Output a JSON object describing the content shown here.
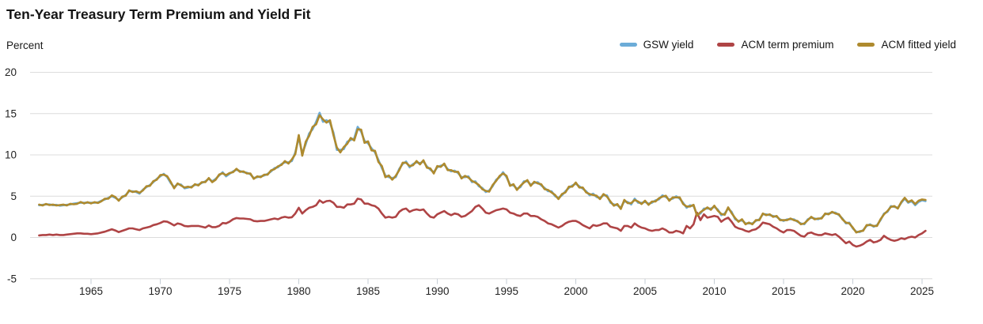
{
  "header": {
    "title": "Ten-Year Treasury Term Premium and Yield Fit"
  },
  "colors": {
    "grid": "#dcdcdc",
    "tick": "#c6ced6",
    "axis_text": "#222222",
    "blue": "#6cacd8",
    "red": "#af4445",
    "gold": "#ae8a2e"
  },
  "chart_data": {
    "type": "line",
    "title": "Ten-Year Treasury Term Premium and Yield Fit",
    "ylabel": "Percent",
    "xlabel": "",
    "ylim": [
      -5,
      20
    ],
    "xlim": [
      1960.6,
      2025.7
    ],
    "grid": "horizontal",
    "legend_position": "top-right",
    "y_ticks": [
      20,
      15,
      10,
      5,
      0,
      -5
    ],
    "x_ticks": [
      1965,
      1970,
      1975,
      1980,
      1985,
      1990,
      1995,
      2000,
      2005,
      2010,
      2015,
      2020,
      2025
    ],
    "x_start": 1961.25,
    "x_step": 0.25,
    "series": [
      {
        "name": "GSW yield",
        "color": "#6cacd8",
        "values": [
          3.9,
          3.95,
          4.0,
          4.0,
          3.9,
          3.95,
          3.85,
          3.9,
          3.95,
          4.0,
          4.1,
          4.15,
          4.2,
          4.2,
          4.2,
          4.2,
          4.2,
          4.25,
          4.45,
          4.6,
          4.8,
          5.0,
          4.8,
          4.55,
          4.85,
          5.15,
          5.6,
          5.6,
          5.5,
          5.3,
          5.8,
          6.1,
          6.35,
          6.7,
          7.1,
          7.4,
          7.7,
          7.3,
          6.6,
          6.1,
          6.45,
          6.4,
          5.95,
          6.05,
          6.15,
          6.35,
          6.4,
          6.6,
          6.8,
          7.1,
          6.8,
          7.1,
          7.5,
          7.9,
          7.4,
          7.7,
          8.0,
          8.2,
          8.05,
          7.9,
          7.85,
          7.65,
          7.2,
          7.3,
          7.4,
          7.5,
          7.7,
          8.0,
          8.4,
          8.5,
          8.9,
          9.1,
          9.1,
          9.25,
          10.3,
          12.1,
          10.2,
          11.3,
          12.6,
          13.1,
          14.0,
          15.1,
          14.0,
          14.2,
          13.9,
          12.7,
          10.6,
          10.6,
          10.7,
          11.6,
          11.8,
          12.0,
          13.4,
          12.8,
          11.7,
          11.4,
          10.8,
          10.3,
          9.4,
          8.4,
          7.5,
          7.3,
          7.2,
          7.3,
          8.3,
          8.9,
          9.2,
          8.5,
          8.9,
          9.1,
          9.0,
          9.2,
          8.6,
          8.2,
          7.9,
          8.5,
          8.7,
          8.8,
          8.3,
          8.0,
          8.1,
          7.8,
          7.3,
          7.3,
          7.4,
          6.7,
          6.8,
          6.2,
          6.0,
          5.5,
          5.7,
          6.2,
          7.0,
          7.3,
          7.9,
          7.3,
          6.4,
          6.3,
          5.9,
          6.1,
          6.8,
          6.8,
          6.4,
          6.6,
          6.7,
          6.3,
          6.0,
          5.6,
          5.6,
          5.0,
          4.8,
          5.1,
          5.6,
          6.0,
          6.3,
          6.5,
          6.2,
          5.9,
          5.6,
          5.1,
          5.3,
          4.9,
          4.8,
          5.1,
          5.1,
          4.2,
          4.0,
          3.9,
          3.6,
          4.4,
          4.3,
          4.0,
          4.7,
          4.2,
          4.2,
          4.3,
          4.1,
          4.2,
          4.5,
          4.6,
          5.1,
          4.9,
          4.6,
          4.7,
          5.0,
          4.7,
          4.2,
          3.6,
          3.9,
          3.8,
          2.8,
          2.9,
          3.5,
          3.5,
          3.5,
          3.7,
          3.4,
          2.7,
          2.9,
          3.5,
          3.1,
          2.2,
          2.0,
          2.1,
          1.7,
          1.7,
          1.7,
          2.0,
          2.2,
          2.8,
          2.8,
          2.7,
          2.6,
          2.5,
          2.2,
          2.0,
          2.2,
          2.2,
          2.2,
          1.9,
          1.7,
          1.6,
          2.2,
          2.4,
          2.3,
          2.2,
          2.4,
          2.8,
          2.9,
          3.0,
          3.0,
          2.7,
          2.3,
          1.7,
          1.8,
          1.1,
          0.7,
          0.65,
          0.9,
          1.4,
          1.6,
          1.3,
          1.5,
          2.1,
          2.9,
          3.1,
          3.8,
          3.7,
          3.6,
          4.2,
          4.7,
          4.2,
          4.4,
          3.9,
          4.3,
          4.5,
          4.4
        ]
      },
      {
        "name": "ACM term premium",
        "color": "#af4445",
        "values": [
          0.25,
          0.3,
          0.3,
          0.35,
          0.3,
          0.35,
          0.3,
          0.3,
          0.35,
          0.4,
          0.45,
          0.5,
          0.5,
          0.45,
          0.45,
          0.4,
          0.45,
          0.5,
          0.6,
          0.7,
          0.85,
          1.0,
          0.85,
          0.65,
          0.8,
          0.95,
          1.1,
          1.1,
          1.0,
          0.9,
          1.1,
          1.2,
          1.3,
          1.5,
          1.6,
          1.75,
          1.95,
          1.9,
          1.7,
          1.45,
          1.7,
          1.6,
          1.4,
          1.35,
          1.4,
          1.4,
          1.4,
          1.3,
          1.2,
          1.45,
          1.25,
          1.25,
          1.4,
          1.75,
          1.7,
          1.9,
          2.2,
          2.35,
          2.3,
          2.3,
          2.25,
          2.2,
          2.0,
          1.95,
          2.0,
          2.0,
          2.1,
          2.2,
          2.3,
          2.2,
          2.4,
          2.5,
          2.4,
          2.45,
          2.9,
          3.6,
          2.9,
          3.3,
          3.6,
          3.7,
          3.9,
          4.5,
          4.2,
          4.4,
          4.45,
          4.2,
          3.7,
          3.7,
          3.6,
          4.0,
          4.0,
          4.1,
          4.7,
          4.6,
          4.1,
          4.1,
          3.9,
          3.8,
          3.5,
          2.9,
          2.4,
          2.5,
          2.4,
          2.5,
          3.1,
          3.4,
          3.5,
          3.1,
          3.3,
          3.4,
          3.3,
          3.4,
          2.9,
          2.5,
          2.4,
          2.8,
          3.0,
          3.2,
          2.9,
          2.7,
          2.9,
          2.8,
          2.5,
          2.6,
          2.9,
          3.2,
          3.7,
          3.9,
          3.5,
          3.0,
          2.9,
          3.1,
          3.3,
          3.4,
          3.5,
          3.4,
          3.0,
          2.9,
          2.7,
          2.6,
          2.9,
          2.9,
          2.6,
          2.6,
          2.5,
          2.2,
          2.0,
          1.7,
          1.6,
          1.4,
          1.2,
          1.4,
          1.7,
          1.9,
          2.0,
          2.0,
          1.8,
          1.5,
          1.3,
          1.1,
          1.5,
          1.4,
          1.5,
          1.7,
          1.7,
          1.3,
          1.2,
          1.1,
          0.8,
          1.4,
          1.4,
          1.2,
          1.7,
          1.4,
          1.2,
          1.1,
          0.9,
          0.8,
          0.9,
          0.9,
          1.1,
          0.9,
          0.6,
          0.6,
          0.8,
          0.7,
          0.5,
          1.4,
          1.1,
          1.6,
          3.0,
          2.1,
          2.8,
          2.4,
          2.5,
          2.6,
          2.5,
          1.9,
          2.2,
          2.4,
          1.9,
          1.3,
          1.1,
          1.0,
          0.8,
          0.7,
          0.9,
          1.0,
          1.3,
          1.8,
          1.7,
          1.6,
          1.3,
          1.1,
          0.8,
          0.6,
          0.9,
          0.9,
          0.8,
          0.5,
          0.2,
          0.1,
          0.5,
          0.6,
          0.4,
          0.3,
          0.3,
          0.5,
          0.4,
          0.3,
          0.4,
          0.1,
          -0.3,
          -0.7,
          -0.5,
          -0.9,
          -1.1,
          -1.0,
          -0.8,
          -0.5,
          -0.3,
          -0.6,
          -0.5,
          -0.3,
          0.2,
          -0.1,
          -0.3,
          -0.4,
          -0.3,
          -0.1,
          -0.2,
          0.0,
          0.1,
          0.0,
          0.3,
          0.5,
          0.8
        ]
      },
      {
        "name": "ACM fitted yield",
        "color": "#ae8a2e",
        "values": [
          3.98,
          3.88,
          4.06,
          3.92,
          3.98,
          3.88,
          3.92,
          3.98,
          3.88,
          4.08,
          4.02,
          4.08,
          4.3,
          4.12,
          4.28,
          4.12,
          4.28,
          4.18,
          4.38,
          4.7,
          4.7,
          5.1,
          4.9,
          4.45,
          4.95,
          5.05,
          5.7,
          5.5,
          5.6,
          5.42,
          5.7,
          6.2,
          6.25,
          6.82,
          7.0,
          7.55,
          7.6,
          7.42,
          6.75,
          5.95,
          6.55,
          6.3,
          6.05,
          6.15,
          6.05,
          6.45,
          6.3,
          6.7,
          6.7,
          7.2,
          6.7,
          7.0,
          7.62,
          7.78,
          7.55,
          7.8,
          7.9,
          8.32,
          7.95,
          8.0,
          7.75,
          7.75,
          7.1,
          7.4,
          7.3,
          7.6,
          7.6,
          8.12,
          8.28,
          8.62,
          8.78,
          9.25,
          8.95,
          9.45,
          10.1,
          12.4,
          9.9,
          11.6,
          12.3,
          13.4,
          13.7,
          14.8,
          14.3,
          13.9,
          14.2,
          12.4,
          10.9,
          10.3,
          10.95,
          11.35,
          12.05,
          11.75,
          13.1,
          13.05,
          11.45,
          11.65,
          10.55,
          10.5,
          9.15,
          8.65,
          7.3,
          7.5,
          7.0,
          7.45,
          8.15,
          9.05,
          9.05,
          8.65,
          8.75,
          9.25,
          8.85,
          9.35,
          8.45,
          8.35,
          7.75,
          8.65,
          8.55,
          8.95,
          8.15,
          8.15,
          7.95,
          7.95,
          7.15,
          7.45,
          7.25,
          6.85,
          6.65,
          6.35,
          5.85,
          5.65,
          5.55,
          6.35,
          6.85,
          7.45,
          7.75,
          7.45,
          6.25,
          6.45,
          5.75,
          6.25,
          6.65,
          6.95,
          6.25,
          6.75,
          6.55,
          6.45,
          5.85,
          5.75,
          5.45,
          5.15,
          4.65,
          5.25,
          5.45,
          6.15,
          6.15,
          6.65,
          6.05,
          6.05,
          5.45,
          5.25,
          5.15,
          5.05,
          4.65,
          5.25,
          4.95,
          4.35,
          3.85,
          4.05,
          3.45,
          4.55,
          4.15,
          4.15,
          4.55,
          4.35,
          4.05,
          4.45,
          3.95,
          4.35,
          4.35,
          4.75,
          4.95,
          5.05,
          4.45,
          4.85,
          4.85,
          4.85,
          4.05,
          3.75,
          3.75,
          3.95,
          2.65,
          3.05,
          3.35,
          3.65,
          3.35,
          3.85,
          3.25,
          2.85,
          2.75,
          3.65,
          2.95,
          2.35,
          1.9,
          2.2,
          1.6,
          1.8,
          1.6,
          2.1,
          2.1,
          2.9,
          2.7,
          2.8,
          2.5,
          2.6,
          2.1,
          2.1,
          2.1,
          2.3,
          2.1,
          2.0,
          1.6,
          1.7,
          2.1,
          2.5,
          2.2,
          2.3,
          2.3,
          2.9,
          2.8,
          3.1,
          2.9,
          2.8,
          2.2,
          1.8,
          1.7,
          1.2,
          0.6,
          0.75,
          0.8,
          1.5,
          1.5,
          1.4,
          1.4,
          2.2,
          2.8,
          3.2,
          3.7,
          3.8,
          3.5,
          4.3,
          4.8,
          4.3,
          4.5,
          4.05,
          4.45,
          4.6,
          4.55
        ]
      }
    ]
  }
}
